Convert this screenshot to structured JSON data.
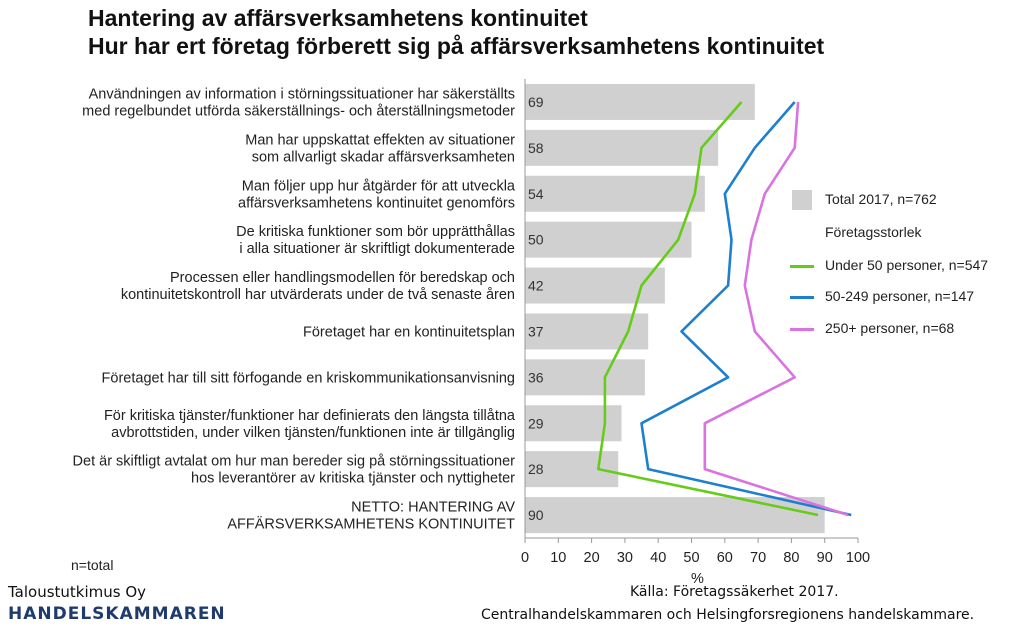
{
  "title": {
    "line1": "Hantering av affärsverksamhetens kontinuitet",
    "line2": "Hur har ert företag förberett sig på affärsverksamhetens kontinuitet"
  },
  "chart_data": {
    "type": "bar",
    "orientation": "horizontal",
    "categories": [
      [
        "Användningen av information i störningssituationer har säkerställts",
        "med regelbundet utförda säkerställnings- och återställningsmetoder"
      ],
      [
        "Man har uppskattat effekten av situationer",
        "som allvarligt skadar affärsverksamheten"
      ],
      [
        "Man följer upp hur åtgärder för att utveckla",
        "affärsverksamhetens kontinuitet genomförs"
      ],
      [
        "De kritiska funktioner som bör upprätthållas",
        "i alla situationer är skriftligt dokumenterade"
      ],
      [
        "Processen eller handlingsmodellen för beredskap och",
        "kontinuitetskontroll har utvärderats under de två senaste åren"
      ],
      [
        "Företaget har en kontinuitetsplan"
      ],
      [
        "Företaget har till sitt förfogande en kriskommunikationsanvisning"
      ],
      [
        "För kritiska tjänster/funktioner har definierats den längsta tillåtna",
        "avbrottstiden, under vilken tjänsten/funktionen inte är tillgänglig"
      ],
      [
        "Det är skiftligt avtalat om hur man bereder sig på störningssituationer",
        "hos leverantörer av kritiska tjänster och nyttigheter"
      ],
      [
        "NETTO: HANTERING AV",
        "AFFÄRSVERKSAMHETENS KONTINUITET"
      ]
    ],
    "series": [
      {
        "name": "Total 2017, n=762",
        "kind": "bar",
        "color": "#d0d0d0",
        "values": [
          69,
          58,
          54,
          50,
          42,
          37,
          36,
          29,
          28,
          90
        ]
      },
      {
        "name": "Under 50 personer, n=547",
        "kind": "line",
        "color": "#66cc1a",
        "values": [
          65,
          53,
          51,
          46,
          35,
          31,
          24,
          24,
          22,
          88
        ]
      },
      {
        "name": "50-249 personer, n=147",
        "kind": "line",
        "color": "#1e7fcf",
        "values": [
          81,
          69,
          60,
          62,
          61,
          47,
          61,
          35,
          37,
          98
        ]
      },
      {
        "name": "250+ personer, n=68",
        "kind": "line",
        "color": "#d873e0",
        "values": [
          82,
          81,
          72,
          68,
          66,
          69,
          81,
          54,
          54,
          97
        ]
      }
    ],
    "xlabel": "%",
    "xlim": [
      0,
      100
    ],
    "xticks": [
      0,
      10,
      20,
      30,
      40,
      50,
      60,
      70,
      80,
      90,
      100
    ],
    "grid": false,
    "legend_heading": "Företagsstorlek",
    "legend_position": "right"
  },
  "footer": {
    "base_note": "n=total",
    "org_line1": "Taloustutkimus Oy",
    "org_line2": "HANDELSKAMMAREN",
    "source_line1": "Källa: Företagssäkerhet 2017.",
    "source_line2": "Centralhandelskammaren och Helsingforsregionens handelskammare."
  }
}
